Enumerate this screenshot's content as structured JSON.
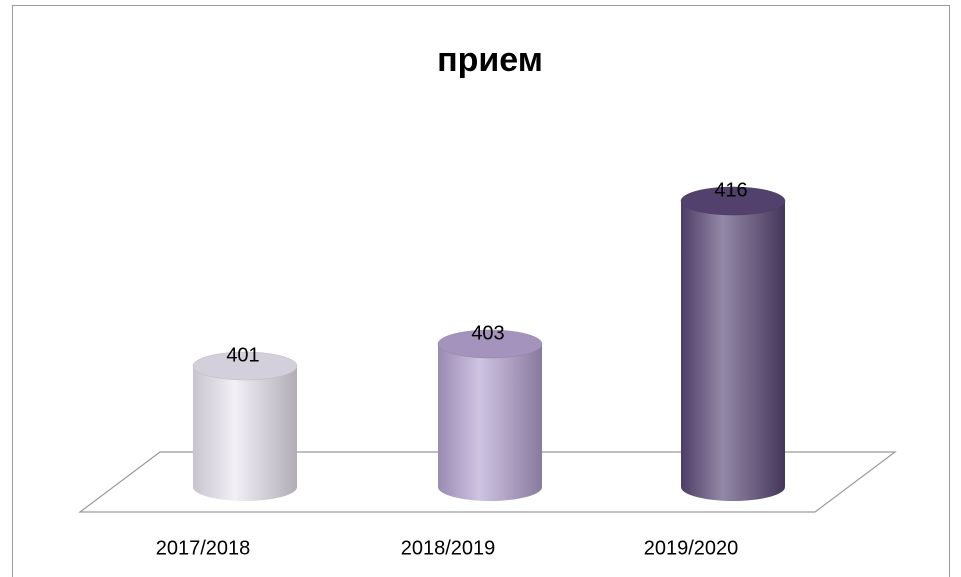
{
  "chart_data": {
    "type": "cylinder",
    "title": "прием",
    "categories": [
      "2017/2018",
      "2018/2019",
      "2019/2020"
    ],
    "values": [
      401,
      403,
      416
    ],
    "colors": [
      "#ebe7f3",
      "#b5a3d2",
      "#5a4878"
    ],
    "ylim": [
      390,
      420
    ]
  }
}
